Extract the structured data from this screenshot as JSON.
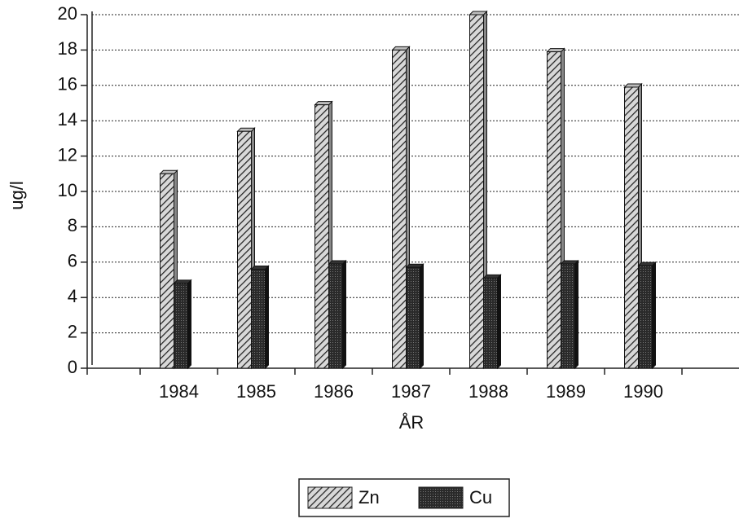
{
  "chart_data": {
    "type": "bar",
    "x_label": "ÅR",
    "y_label": "ug/l",
    "categories": [
      "1984",
      "1985",
      "1986",
      "1987",
      "1988",
      "1989",
      "1990"
    ],
    "series": [
      {
        "name": "Zn",
        "color": "#bdbdbd",
        "values": [
          11,
          13.4,
          14.9,
          18,
          20,
          17.9,
          15.9
        ]
      },
      {
        "name": "Cu",
        "color": "#333333",
        "values": [
          4.8,
          5.6,
          5.9,
          5.7,
          5.1,
          5.9,
          5.8
        ]
      }
    ],
    "ylim": [
      0,
      20
    ],
    "yticks": [
      0,
      2,
      4,
      6,
      8,
      10,
      12,
      14,
      16,
      18,
      20
    ],
    "grid": true
  }
}
